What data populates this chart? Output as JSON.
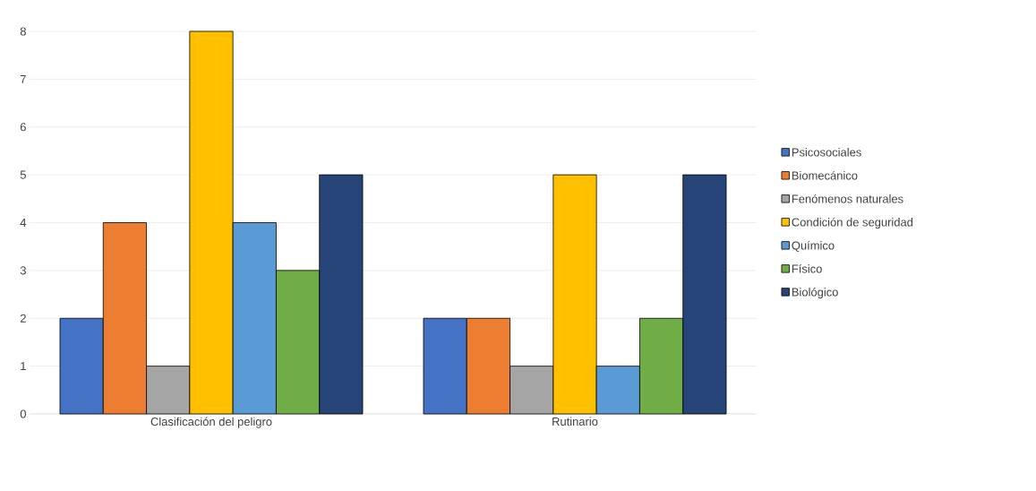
{
  "chart_data": {
    "type": "bar",
    "categories": [
      "Clasificación del peligro",
      "Rutinario"
    ],
    "series": [
      {
        "name": "Psicosociales",
        "color": "#4472c4",
        "values": [
          2,
          2
        ]
      },
      {
        "name": "Biomecánico",
        "color": "#ed7d31",
        "values": [
          4,
          2
        ]
      },
      {
        "name": "Fenómenos naturales",
        "color": "#a5a5a5",
        "values": [
          1,
          1
        ]
      },
      {
        "name": "Condición de seguridad",
        "color": "#ffc000",
        "values": [
          8,
          5
        ]
      },
      {
        "name": "Químico",
        "color": "#5b9bd5",
        "values": [
          4,
          1
        ]
      },
      {
        "name": "Físico",
        "color": "#70ad47",
        "values": [
          3,
          2
        ]
      },
      {
        "name": "Biológico",
        "color": "#264478",
        "values": [
          5,
          5
        ]
      }
    ],
    "ylim": [
      0,
      8
    ],
    "yticks": [
      0,
      1,
      2,
      3,
      4,
      5,
      6,
      7,
      8
    ],
    "grid": "y",
    "legend": "right"
  }
}
